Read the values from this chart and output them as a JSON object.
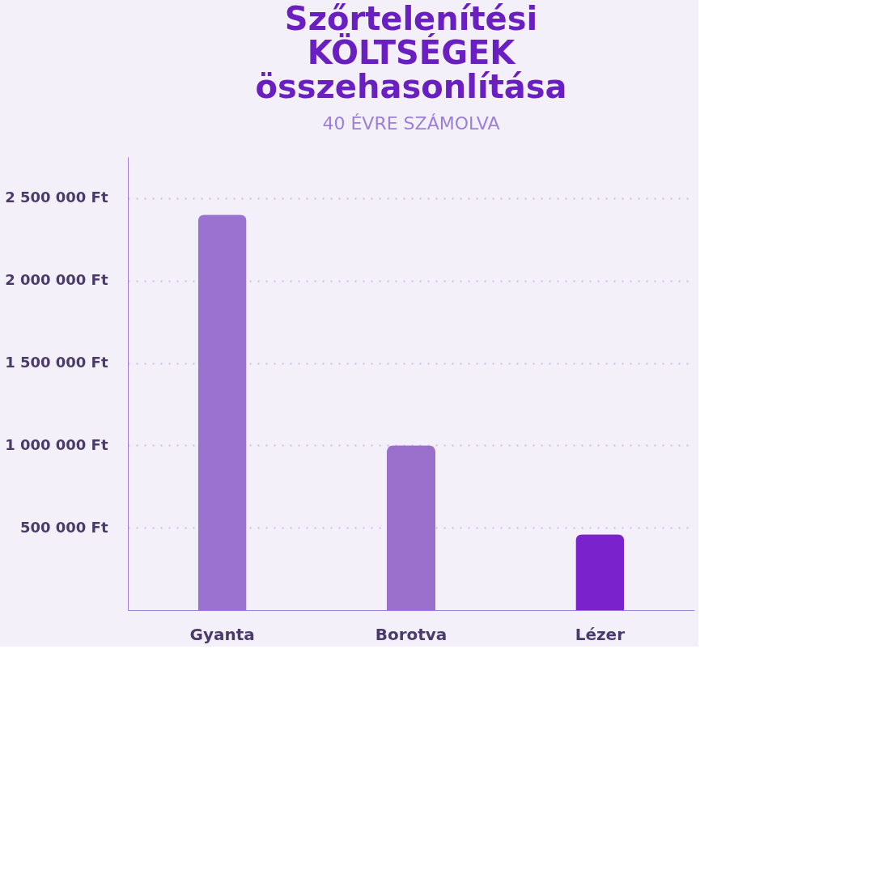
{
  "chart_data": {
    "type": "bar",
    "title": "Szőrtelenítési KÖLTSÉGEK összehasonlítása",
    "subtitle": "40 ÉVRE SZÁMOLVA",
    "categories": [
      "Gyanta",
      "Borotva",
      "Lézer"
    ],
    "values": [
      2400000,
      1000000,
      460000
    ],
    "colors": [
      "#9b72cf",
      "#9a70cc",
      "#7a22cc"
    ],
    "ylim": [
      0,
      2750000
    ],
    "yticks": [
      {
        "value": 500000,
        "label": "500 000 Ft"
      },
      {
        "value": 1000000,
        "label": "1 000 000 Ft"
      },
      {
        "value": 1500000,
        "label": "1 500 000 Ft"
      },
      {
        "value": 2000000,
        "label": "2 000 000 Ft"
      },
      {
        "value": 2500000,
        "label": "2 500 000 Ft"
      }
    ],
    "grid": "y",
    "legend": false
  }
}
